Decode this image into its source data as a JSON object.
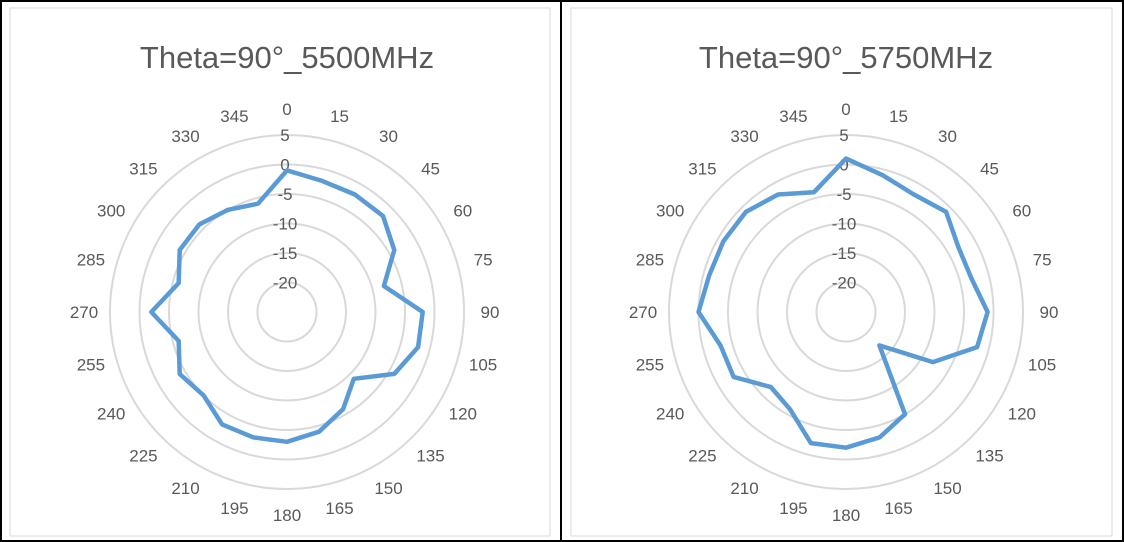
{
  "chart_data": [
    {
      "type": "radar",
      "title": "Theta=90°_5500MHz",
      "angles": [
        "0",
        "15",
        "30",
        "45",
        "60",
        "75",
        "90",
        "105",
        "120",
        "135",
        "150",
        "165",
        "180",
        "195",
        "210",
        "225",
        "240",
        "255",
        "270",
        "285",
        "300",
        "315",
        "330",
        "345"
      ],
      "radial_ticks": [
        "5",
        "0",
        "-5",
        "-10",
        "-15",
        "-20"
      ],
      "rlim": [
        -25,
        5
      ],
      "grid": true,
      "series": [
        {
          "values": [
            -1,
            -2,
            -2,
            -2,
            -4,
            -8,
            -2,
            -2,
            -4,
            -9,
            -6,
            -4,
            -3,
            -3,
            -3,
            -5,
            -4,
            -6,
            -2,
            -6,
            -4,
            -4,
            -5,
            -6
          ]
        }
      ]
    },
    {
      "type": "radar",
      "title": "Theta=90°_5750MHz",
      "angles": [
        "0",
        "15",
        "30",
        "45",
        "60",
        "75",
        "90",
        "105",
        "120",
        "135",
        "150",
        "165",
        "180",
        "195",
        "210",
        "225",
        "240",
        "255",
        "270",
        "285",
        "300",
        "315",
        "330",
        "345"
      ],
      "radial_ticks": [
        "5",
        "0",
        "-5",
        "-10",
        "-15",
        "-20"
      ],
      "rlim": [
        -25,
        5
      ],
      "grid": true,
      "series": [
        {
          "values": [
            1,
            -1,
            -2,
            -1,
            -3,
            -3,
            -1,
            -2,
            -8,
            -17,
            -5,
            -3,
            -2,
            -2,
            -6,
            -7,
            -3,
            -3,
            0,
            -1,
            -1,
            -1,
            -2,
            -4
          ]
        }
      ]
    }
  ],
  "colors": {
    "series": "#5b9bd5",
    "grid": "#d9d9d9",
    "text": "#595959",
    "border": "#000000"
  }
}
